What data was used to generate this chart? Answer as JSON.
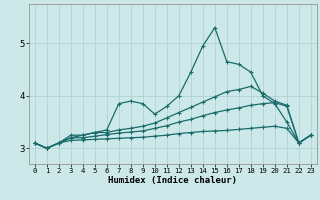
{
  "bg_color": "#cce8e8",
  "grid_color": "#aacece",
  "line_color": "#1a6b6b",
  "xlabel": "Humidex (Indice chaleur)",
  "xlim": [
    -0.5,
    23.5
  ],
  "ylim": [
    2.7,
    5.75
  ],
  "yticks": [
    3,
    4,
    5
  ],
  "xticks": [
    0,
    1,
    2,
    3,
    4,
    5,
    6,
    7,
    8,
    9,
    10,
    11,
    12,
    13,
    14,
    15,
    16,
    17,
    18,
    19,
    20,
    21,
    22,
    23
  ],
  "line1_x": [
    0,
    1,
    2,
    3,
    4,
    5,
    6,
    7,
    8,
    9,
    10,
    11,
    12,
    13,
    14,
    15,
    16,
    17,
    18,
    19,
    20,
    21,
    22,
    23
  ],
  "line1_y": [
    3.1,
    3.0,
    3.1,
    3.2,
    3.25,
    3.3,
    3.35,
    3.85,
    3.9,
    3.85,
    3.65,
    3.8,
    4.0,
    4.45,
    4.95,
    5.3,
    4.65,
    4.6,
    4.45,
    4.0,
    3.85,
    3.5,
    3.1,
    3.25
  ],
  "line2_x": [
    0,
    1,
    2,
    3,
    4,
    5,
    6,
    7,
    8,
    9,
    10,
    11,
    12,
    13,
    14,
    15,
    16,
    17,
    18,
    19,
    20,
    21,
    22,
    23
  ],
  "line2_y": [
    3.1,
    3.0,
    3.1,
    3.25,
    3.25,
    3.3,
    3.3,
    3.35,
    3.38,
    3.42,
    3.48,
    3.58,
    3.68,
    3.78,
    3.88,
    3.98,
    4.08,
    4.12,
    4.18,
    4.05,
    3.9,
    3.82,
    3.1,
    3.25
  ],
  "line3_x": [
    0,
    1,
    2,
    3,
    4,
    5,
    6,
    7,
    8,
    9,
    10,
    11,
    12,
    13,
    14,
    15,
    16,
    17,
    18,
    19,
    20,
    21,
    22,
    23
  ],
  "line3_y": [
    3.1,
    3.0,
    3.1,
    3.2,
    3.2,
    3.23,
    3.26,
    3.29,
    3.31,
    3.33,
    3.38,
    3.43,
    3.5,
    3.55,
    3.62,
    3.68,
    3.73,
    3.77,
    3.82,
    3.85,
    3.87,
    3.8,
    3.1,
    3.25
  ],
  "line4_x": [
    0,
    1,
    2,
    3,
    4,
    5,
    6,
    7,
    8,
    9,
    10,
    11,
    12,
    13,
    14,
    15,
    16,
    17,
    18,
    19,
    20,
    21,
    22,
    23
  ],
  "line4_y": [
    3.1,
    3.0,
    3.1,
    3.15,
    3.16,
    3.17,
    3.18,
    3.19,
    3.2,
    3.21,
    3.23,
    3.25,
    3.28,
    3.3,
    3.32,
    3.33,
    3.34,
    3.36,
    3.38,
    3.4,
    3.42,
    3.38,
    3.1,
    3.25
  ],
  "marker": "+",
  "markersize": 3,
  "linewidth": 0.9
}
